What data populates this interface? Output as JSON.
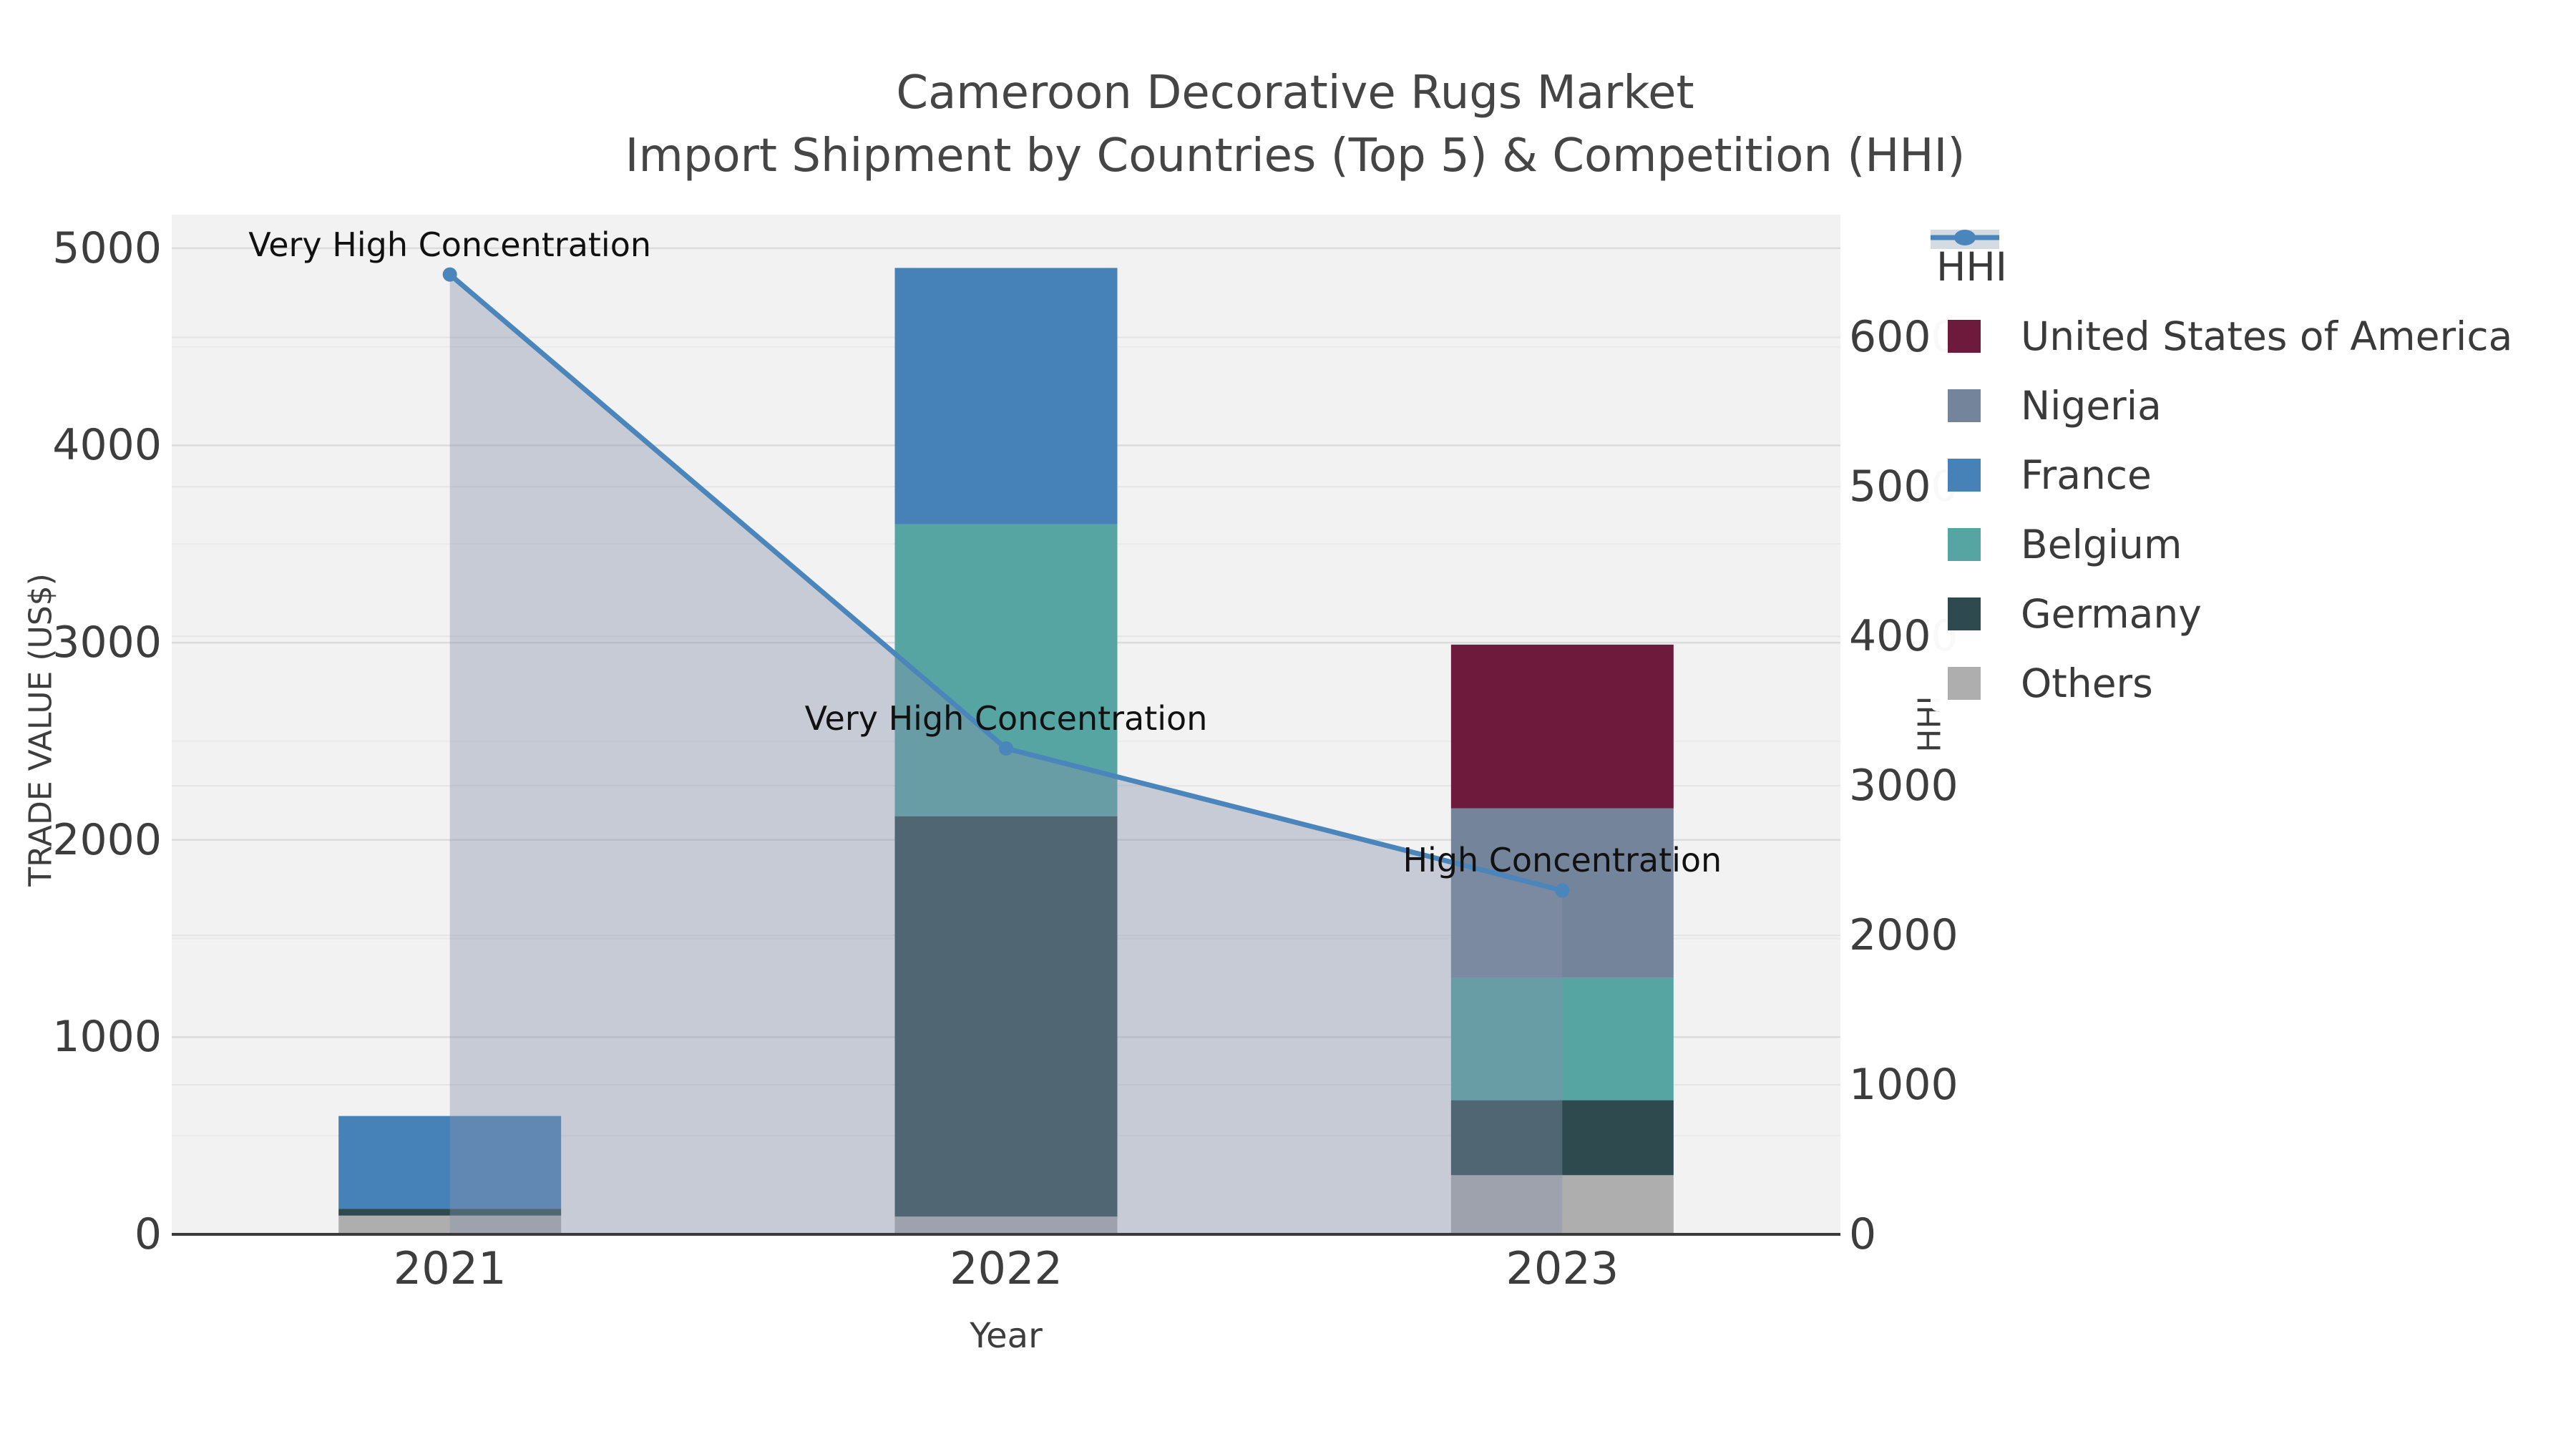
{
  "title": {
    "line1": "Cameroon Decorative Rugs Market",
    "line2": "Import Shipment by Countries (Top 5) & Competition (HHI)"
  },
  "axes": {
    "x_label": "Year",
    "y_left_label": "TRADE VALUE (US$)",
    "y_right_label": "HHI"
  },
  "legend": {
    "items": [
      {
        "label": "HHI",
        "type": "line",
        "color": "#4A86BB",
        "band_color": "#D5DBE3"
      },
      {
        "label": "United States of America",
        "type": "patch",
        "color": "#6D1A3C"
      },
      {
        "label": "Nigeria",
        "type": "patch",
        "color": "#74849B"
      },
      {
        "label": "France",
        "type": "patch",
        "color": "#4682B8"
      },
      {
        "label": "Belgium",
        "type": "patch",
        "color": "#56A5A3"
      },
      {
        "label": "Germany",
        "type": "patch",
        "color": "#2E4A4F"
      },
      {
        "label": "Others",
        "type": "patch",
        "color": "#AEAEAE"
      }
    ]
  },
  "chart_data": {
    "type": "combo: stacked bar (left axis) + line with area fill (right axis)",
    "title": "Cameroon Decorative Rugs Market",
    "subtitle": "Import Shipment by Countries (Top 5) & Competition (HHI)",
    "categories": [
      "2021",
      "2022",
      "2023"
    ],
    "xlabel": "Year",
    "series": [
      {
        "name": "United States of America",
        "values": [
          0,
          0,
          830
        ],
        "color": "#6D1A3C"
      },
      {
        "name": "Nigeria",
        "values": [
          0,
          0,
          860
        ],
        "color": "#74849B"
      },
      {
        "name": "France",
        "values": [
          470,
          1300,
          0
        ],
        "color": "#4682B8"
      },
      {
        "name": "Belgium",
        "values": [
          0,
          1480,
          620
        ],
        "color": "#56A5A3"
      },
      {
        "name": "Germany",
        "values": [
          35,
          2030,
          380
        ],
        "color": "#2E4A4F"
      },
      {
        "name": "Others",
        "values": [
          95,
          90,
          300
        ],
        "color": "#AEAEAE"
      }
    ],
    "stack_order": [
      "Others",
      "Germany",
      "Belgium",
      "Nigeria",
      "France",
      "United States of America"
    ],
    "bar_totals": [
      600,
      4900,
      2990
    ],
    "line_series": {
      "name": "HHI",
      "values": [
        6420,
        3250,
        2300
      ],
      "axis": "right",
      "color": "#4A86BB",
      "area_fill": "#8791AA",
      "area_alpha": 0.4
    },
    "annotations": [
      {
        "category": "2021",
        "text": "Very High Concentration"
      },
      {
        "category": "2022",
        "text": "Very High Concentration"
      },
      {
        "category": "2023",
        "text": "High Concentration"
      }
    ],
    "y_left": {
      "label": "TRADE VALUE (US$)",
      "ticks": [
        0,
        1000,
        2000,
        3000,
        4000,
        5000
      ],
      "max": 5170,
      "minor_step": 500
    },
    "y_right": {
      "label": "HHI",
      "ticks": [
        0,
        1000,
        2000,
        3000,
        4000,
        5000,
        6000
      ],
      "max": 6820
    },
    "grid": "horizontal major + minor, on light gray plot background",
    "legend_position": "upper right, overlapping right tick labels",
    "plot_bg": "#F2F2F2"
  },
  "colors": {
    "plot_bg": "#F2F2F2",
    "grid_major": "#DBDBDB",
    "grid_minor": "#EAEAEA",
    "grid_right": "#E4E4E4",
    "spine": "#3A3A3A",
    "text": "#3D3D3D",
    "title_text": "#454545",
    "annotation_text": "#111111"
  }
}
